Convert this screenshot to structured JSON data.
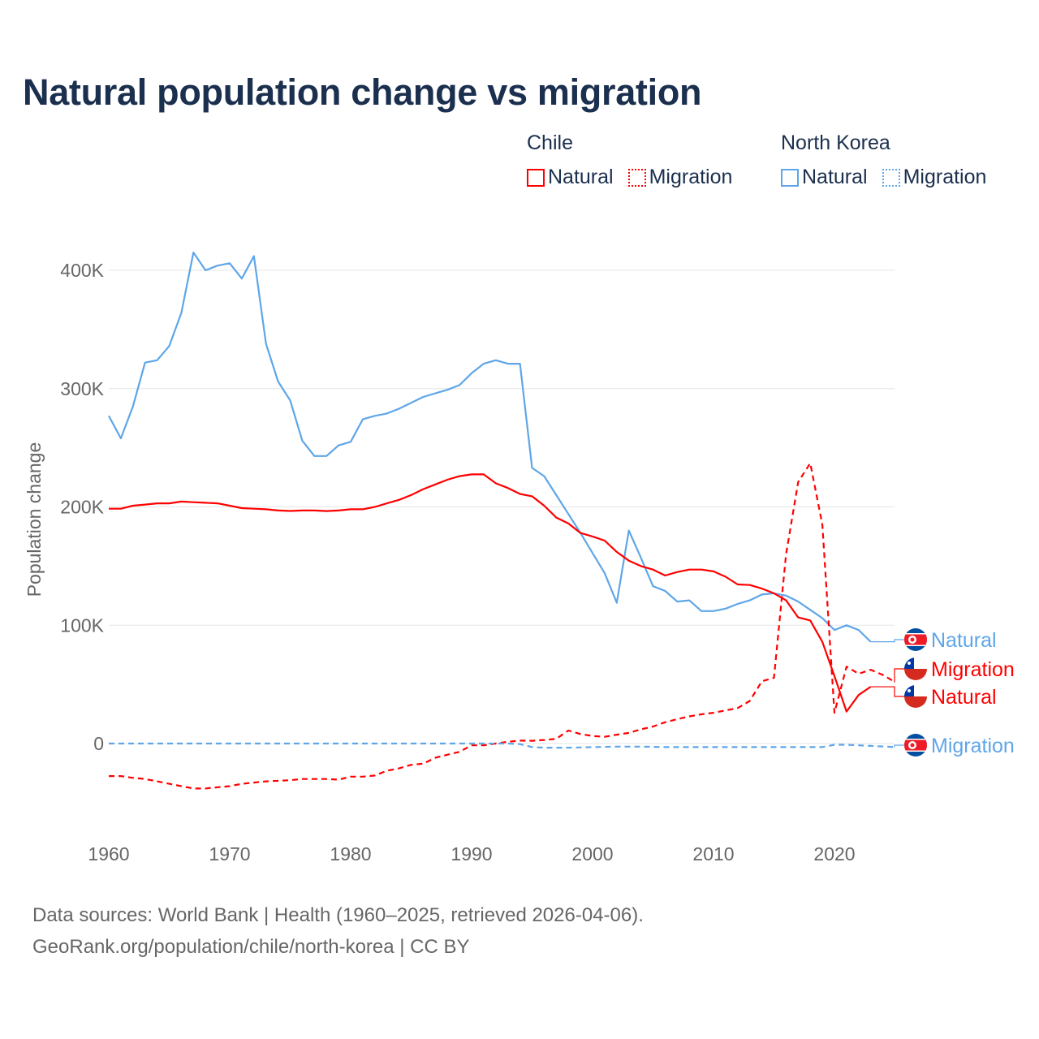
{
  "title": "Natural population change vs migration",
  "legend": {
    "groups": [
      {
        "name": "Chile",
        "color": "#ff0000",
        "items": [
          "Natural",
          "Migration"
        ]
      },
      {
        "name": "North Korea",
        "color": "#5ea6e8",
        "items": [
          "Natural",
          "Migration"
        ]
      }
    ]
  },
  "footer": {
    "line1": "Data sources: World Bank | Health (1960–2025, retrieved 2026-04-06).",
    "line2": "GeoRank.org/population/chile/north-korea | CC BY"
  },
  "chart_data": {
    "type": "line",
    "title": "Natural population change vs migration",
    "xlabel": "",
    "ylabel": "Population change",
    "xlim": [
      1960,
      2025
    ],
    "ylim": [
      -60000,
      430000
    ],
    "x_ticks": [
      1960,
      1970,
      1980,
      1990,
      2000,
      2010,
      2020
    ],
    "y_ticks": [
      0,
      100000,
      200000,
      300000,
      400000
    ],
    "y_tick_labels": [
      "0",
      "100K",
      "200K",
      "300K",
      "400K"
    ],
    "grid": true,
    "legend_position": "top-right",
    "series": [
      {
        "name": "North Korea Natural",
        "country": "North Korea",
        "kind": "Natural",
        "label": "Natural",
        "color": "#5ea6e8",
        "dash": false,
        "start": 1960,
        "values": [
          277,
          258,
          285,
          322,
          324,
          336,
          364,
          415,
          400,
          404,
          406,
          393,
          412,
          338,
          306,
          290,
          256,
          243,
          243,
          252,
          255,
          274,
          277,
          279,
          283,
          288,
          293,
          296,
          299,
          303,
          313,
          321,
          324,
          321,
          321,
          233,
          226,
          210,
          194,
          178,
          161,
          144,
          119,
          180,
          157,
          133,
          129,
          120,
          121,
          112,
          112,
          114,
          118,
          121,
          126,
          127,
          125,
          120,
          113,
          106,
          96,
          100,
          96,
          86
        ]
      },
      {
        "name": "Chile Migration",
        "country": "Chile",
        "kind": "Migration",
        "label": "Migration",
        "color": "#ff0000",
        "dash": true,
        "start": 1960,
        "values": [
          -27.5,
          -27.5,
          -29,
          -30,
          -32,
          -34,
          -36,
          -38,
          -38,
          -37,
          -36,
          -34,
          -33,
          -32,
          -31.5,
          -31,
          -30,
          -30,
          -30,
          -30.5,
          -28,
          -28,
          -27,
          -23,
          -21,
          -18,
          -17,
          -12,
          -9.5,
          -7,
          -1.5,
          -1.5,
          0,
          1.5,
          2.5,
          2.3,
          3,
          4,
          11,
          8,
          6.4,
          5.7,
          7.5,
          9,
          12,
          14.4,
          18,
          20.6,
          23,
          24.7,
          26,
          28,
          30,
          36,
          52.6,
          55.6,
          160,
          221,
          237,
          185,
          26,
          65,
          59,
          62.4,
          58,
          52
        ]
      },
      {
        "name": "Chile Natural",
        "country": "Chile",
        "kind": "Natural",
        "label": "Natural",
        "color": "#ff0000",
        "dash": false,
        "start": 1960,
        "values": [
          198.5,
          198.5,
          201,
          202,
          203,
          203,
          204.5,
          204,
          203.5,
          203,
          201,
          199,
          198.5,
          198,
          197,
          196.6,
          197,
          197,
          196.5,
          197,
          198,
          198,
          200,
          203,
          206,
          210,
          215,
          219,
          223,
          226,
          227.5,
          227.5,
          220,
          216,
          211,
          209,
          201,
          191,
          186,
          178,
          175,
          171.5,
          162,
          154.6,
          150,
          147,
          142,
          145,
          147,
          147,
          145.5,
          141,
          134.5,
          134,
          131,
          127,
          121,
          106.6,
          104,
          86,
          57,
          27,
          41,
          48
        ]
      },
      {
        "name": "North Korea Migration",
        "country": "North Korea",
        "kind": "Migration",
        "label": "Migration",
        "color": "#5ea6e8",
        "dash": true,
        "start": 1960,
        "values": [
          0,
          0,
          0,
          0,
          0,
          0,
          0,
          0,
          0,
          0,
          0,
          0,
          0,
          0,
          0,
          0,
          0,
          0,
          0,
          0,
          0,
          0,
          0,
          0,
          0,
          0,
          0,
          0,
          0,
          0,
          0,
          0,
          0,
          0,
          -0.5,
          -3,
          -3.5,
          -3.5,
          -3.5,
          -3.3,
          -3,
          -2.8,
          -2.6,
          -2.6,
          -2.6,
          -2.8,
          -3,
          -3,
          -3,
          -3,
          -3,
          -3,
          -3,
          -3,
          -3,
          -3,
          -3,
          -3,
          -3,
          -3,
          -1,
          -1,
          -1.5,
          -2,
          -2.5,
          -3
        ]
      }
    ],
    "value_unit": "thousands"
  }
}
